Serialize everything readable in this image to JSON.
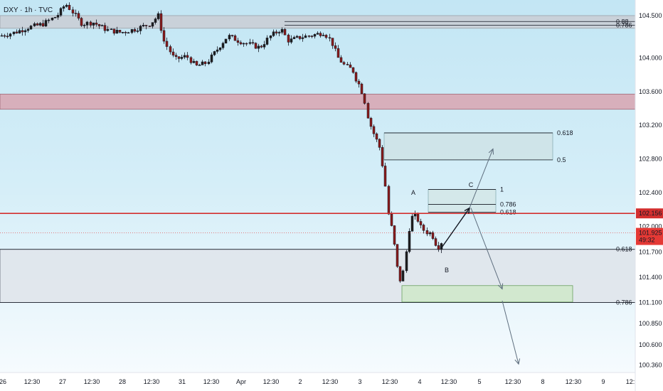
{
  "header": {
    "title": "DXY · 1h · TVC"
  },
  "chart_data": {
    "type": "candlestick",
    "symbol": "DXY",
    "interval": "1h",
    "source": "TVC",
    "ylim": [
      100.27,
      104.685
    ],
    "y_ticks": [
      "104.500",
      "104.000",
      "103.600",
      "103.200",
      "102.800",
      "102.400",
      "102.000",
      "101.700",
      "101.400",
      "101.100",
      "100.850",
      "100.600",
      "100.360"
    ],
    "x_ticks": [
      "26",
      "12:30",
      "27",
      "12:30",
      "28",
      "12:30",
      "31",
      "12:30",
      "Apr",
      "12:30",
      "2",
      "12:30",
      "3",
      "12:30",
      "4",
      "12:30",
      "5",
      "12:30",
      "8",
      "12:30",
      "9",
      "12:"
    ],
    "price_markers": {
      "key_level": {
        "label": "102.156",
        "value": 102.156,
        "color": "#d32f2f"
      },
      "current": {
        "label": "101.925",
        "countdown": "49:32",
        "value": 101.925,
        "color": "#e53935"
      }
    },
    "zones": [
      {
        "name": "top-resistance-zone",
        "from": 104.35,
        "to": 104.5,
        "color": "#c9cdd4"
      },
      {
        "name": "supply-zone",
        "from": 103.39,
        "to": 103.57,
        "color": "#d8a9b5"
      },
      {
        "name": "demand-zone",
        "from": 101.1,
        "to": 101.73,
        "color": "#dfe4ea"
      },
      {
        "name": "target-zone",
        "from": 101.105,
        "to": 101.3,
        "color": "#cfe8c9"
      },
      {
        "name": "fib-retracement-zone",
        "from": 102.79,
        "to": 103.11,
        "color": "#cfe3e6"
      },
      {
        "name": "abc-zone",
        "from": 102.17,
        "to": 102.44,
        "color": "#d4e6e8"
      }
    ],
    "fib_levels": [
      {
        "label": "0.88",
        "value": 104.43
      },
      {
        "label": "0.786",
        "value": 104.385
      },
      {
        "label": "0.618",
        "value": 103.11
      },
      {
        "label": "0.5",
        "value": 102.79
      },
      {
        "label": "1",
        "value": 102.44
      },
      {
        "label": "0.786",
        "value": 102.263
      },
      {
        "label": "0.618",
        "value": 102.17
      },
      {
        "label": "0.618",
        "value": 101.73
      },
      {
        "label": "0.786",
        "value": 101.1
      }
    ],
    "wave_labels": [
      "A",
      "B",
      "C"
    ],
    "projection": {
      "bullish_path": [
        [
          101.74,
          102.22
        ],
        [
          102.22,
          102.92
        ]
      ],
      "bearish_path": [
        [
          102.22,
          101.26
        ],
        [
          101.12,
          100.37
        ]
      ]
    },
    "candles_note": "hourly OHLC path from ~104.3 down to ~101.2, then rebound to ~102.1"
  }
}
